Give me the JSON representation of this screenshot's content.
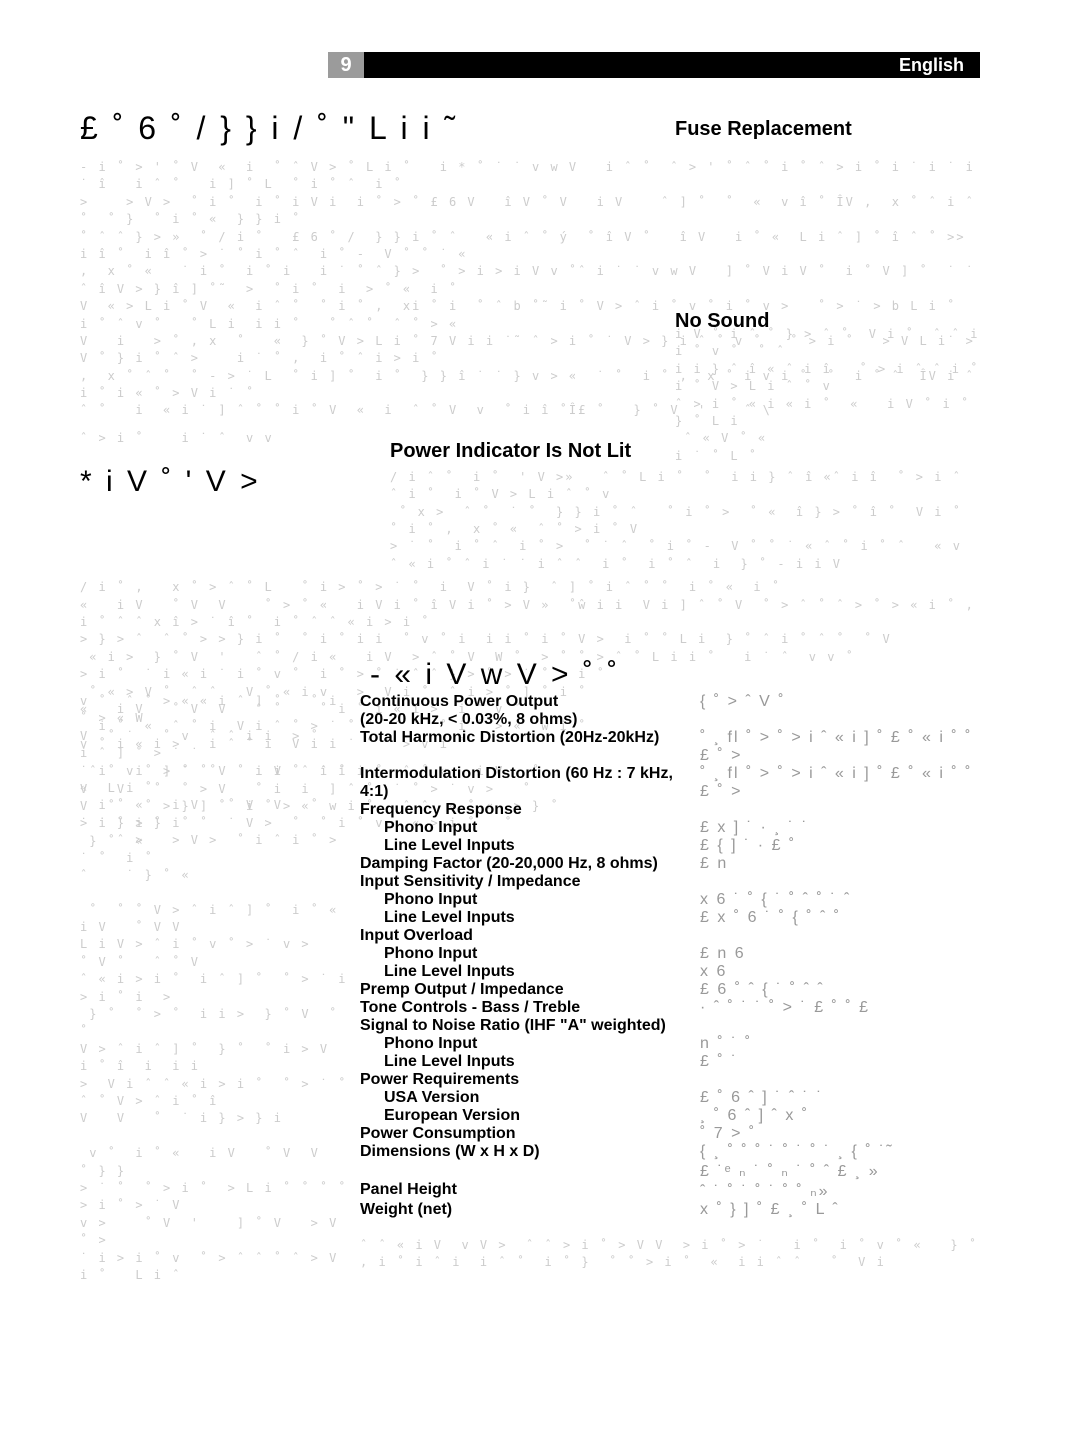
{
  "header": {
    "page_number": "9",
    "language": "English"
  },
  "titles": {
    "troubleshooting": "£  ˚ 6     ˚ /   } } i  / ˚ \"   L i i ˜",
    "fuse_replacement": "Fuse Replacement",
    "power_indicator": "Power Indicator Is Not Lit",
    "no_sound": "No Sound",
    "section2_left": "*     i V      ˚    '   V >",
    "spec_heading": "- « i V   w V >         ˚  ˚"
  },
  "body": {
    "block1": "- i ˚ > ' ˚ V  «  i  ˚ ˆ V > ˚ L i ˚   i * ˚ ˙ ˙ v w V   i ˆ ˚  ˆ > ' ˚ ˆ ˚ i ˚ ˆ > i ˚ i ˙ i ˙ i ˙ î   i ˆ ˚   i ] ˚ L  ˚ i ˚ ˆ  i ˚\n>    > V >  ˚ i ˚  i ˚ i V i  i ˚ > ˚ £ 6 V   î V ˚ V   i V    ˆ ] ˚  ˚  «  v î ˚ ÎV ,  x ˚ ˆ i ˆ ˚  ˚ }  ˚ i ˚ «  } } i ˚\n˚ ˆ ˆ } > »  ˚ / i ˚   £ 6 ˚ /  } } i ˚ ˆ   « i ˆ ˚ ý  ˚ î V ˚   î V   i ˚ «  L i ˆ ] ˚ î ˆ ˚ >> i î ˚  i î ˚ > ˙ ˚ i ˚ ˆ  i ˚ -  V ˚ ˚ ˙ «\n,  x ˚ «   ˙ i ˚  i ˚ i   i ˙ ˚ ˆ } >  ˚ > i > i V v ˚ˆ i ˙ ˙ v w V   ] ˚ V i V ˚  i ˚ V ] ˚  ˙ ˙ ˆ î V > } î ] ˚˜  >  ˚ i ˚  i  > ˚ «  i ˚\nV  « > L i ˚ V  «  i ˆ ˚  ˚ i ˚ ,  xi ˚ i  ˚ ˆ b ˚˜ i ˚ V > ˆ i ˚ v ˚ i ˚ v >   ˚ > ˙ > b L i ˚  i ˚ ˆ v ˚   ˚ L i  i i ˚   ˚ ˆ ˚  ˆ ˚ > «\nV   i   > ˚ , x  ˚   «  } ˚ V > L i ˚ 7 V i i ˙˜ ˆ > i ˚ ˙ V > } i ˆ ˚ v ˚   ˚ > i ˚   > V L i˙ > V ˚ } i ˚ ˆ >    i ˙ ˚ ,  i ˚ ˆ i > i ˚\n,  x ˚ ˆ ˚  ˚ - > ˙ L  ˚ i ] ˚  i ˚  } } î ˙ ˙ } v > «  ˙ ˚  i ˚ ,  x ˚ i v i ˚  ˚  i ˚ ˆ  ÎV i ˆ i ˚ i « ˚ > V i ˙ ˚\nˆ ˚   i  « i ˙ ] ˆ ˚ ˚ i ˚ V  «  i  ˆ ˚ V  v  ˚ i î ˚Î£ ˚   } ˚ V  '    ˆ \\",
    "trouble_tail": "ˆ > i ˚    i ˙ ˆ  v v",
    "power_block": "/ i ˆ ˚  i ˚  ' V >»   ˆ ˚ L i ˚  ˚  i i } ˆ î «ˆ i î  ˚ > i ˆ ˆ i ˚  i ˚ V > L i ˆ ˚ v\n ˚ x >  ˆ ˚  ˙ ˚  } } i ˚ ˆ   ˚ i ˚ >  ˚ «  î } > ˚ î ˚  V i ˚  ˚ i ˚ ,  x ˚ «  ˆ ˚ > i ˚ V\n> ˙ ˚  i ˚ ˆ  i ˚ >  ˚ ˙ ˆ  ˚ i ˚ -  V ˚ ˚ ˙ « ˆ ˚ i ˚ ˆ   « v ˆ « i ˚ ˆ i ˙ ˙ i ˆ ˆ  i ˚  i ˚ ˆ  i  } ˚ - i i V",
    "no_sound_block": "i V ˚ i ˆ ˚ } > ˆ ˚  V i ˚  ˆ ˆ i i ˚ v ˚  ˚ ˆ\ni i } ˆ î « ˆ i î   ˚ > i ˆ ˆ i ˚  i ˚ V > L i ˆ ˚ v\nˆ > i ˚ « i « i ˚  «   i V ˚ i ˚    } ˚ L i\n ˆ « V ˚ «\ni ˙ ˚ L ˚",
    "mid_block": "/ i ˚ ,   x ˚ > ˆ ˚ L   ˚ i > ˚ > ˙ ˚  i  V ˚ i }  ˆ ] ˚ i ˆ ˚ ˚  i ˚ «  i ˚\n«   i V   ˚ V  V    ˚ > ˚ «   i V i ˚ î V i ˚ > V »  ˚ŵ i i  V i ] ˆ ˚ V  ˚ > ˆ ˚ ˆ > ˚ > « i ˚ , i ˚ ˆ ˆ x î > ˙ î ˚  i ˚ ˆ ˆ « i > i ˚\n> } > ˆ  ˆ ˚ > > } i ˚  ˚ i ˚ i i  ˚ v ˚ i  i i ˚ i ˚ V >  i ˚ ˚ L i  } ˚ ˆ i ˚ ˆ ˚  ˚ V\n « i >  } ˚ V  '   ˆ ˚ / i «   i V  > ˆ ˚ V  W ˚  > ˚ ˚ > ˆ ˚ L i i ˚   i ˙ ˆ  v v ˚\n> i ˚  ˙ i « i ˙ i ˚ v ˚  i ˚ > ˚ ˙ ˆ ˆ } > ˚ > ˙ ˚ > i ˚\n ˚ « > V ˚  ˆ ˆ   V ˚ « i v   >  V i ˚  ˆ i > ˚ ] ˚ i ˚\n«   i V   ˚ V  V   ˆ ˚    ˚ i ˚ i « i >  i ˚ v ˚\n  i ˚  «  ˆ ˚ i  V i ˆ ˚ > ˙ ˚ ˆ  ˙ ˚  ˚ i ˚ > «  w i ˚\nv ˚ i « i >   i ˆ ˚ i  V i i ˙ ˚ ˆ > v i ˚    ˚",
    "mid_block2": " ˆ ˚  i  ] ˚  ˚  ˚ i i  ˆ ˆ i i ˚  ˆ ˚ «   i V   ˚\nV   V   ˚  ˚ > V   ˚ i  i  ] ˆ ˚  ˙ ˚ > ˙ v >   ˚\nV  ˚   ˚ > } ] ˚  i ˚ > «  w i ˚   ˆ ˆ  « ˚ «  > } ˚\n> ˙ ˚ i ˚  ˚ ˚  ˙ V >  ˚  ˚ i ˚ v   « > i ˚   ˚\n } ˚  «",
    "left_col": "v ˚  ˆ ˚ > « « i ˆ ] ˚   ˚ i ˚ > « W\nV  ˚ ˙   ˚ v  ˆ ˆ i i  > ˚   i ˆ ] ˚ > ˙ ˙\n˙ i  v ˚ > ˙ ˚ V   i V ˚  i ˚ «  L i ˚\n  i ˚ «   i V   ˚ V  V   ˚   ˙ i } > } i\n    ˆ >   > V >  ˚ i ˆ i ˚ > ˙ ˚  i ˚\nˆ    ˙ } ˚ «\n\n ˚  ˚ ˚ V > ˆ i ˆ ] ˚  i ˚ «   i V   ˚ V V\nL i V > ˆ i ˚ v ˚ > ˙ v >    ˚ V ˚   ˆ ˚ V\nˆ « i > i ˚  i ˆ ] ˚  ˚ > ˙ i  > i ˚ i  >\n } ˚  ˚ > ˚  i i >  } ˚ V  ˚   ˚\nV > ˆ i ˆ ] ˚  } ˚  ˚ i > V  i ˚ î  i  i i\n>  V i ˆ ˆ « i > i ˚  ˚ > ˙ ˚ ˆ ˚ V > ˆ i ˚ î\nV   V   ˚  ˙ i } > } i\n\n v ˚  i ˚ «   i V   ˚ V  V    ˚ } }\n> ˙ ˚  ˚ > i ˚  > L i ˚ ˚ ˚ ˚ > i ˚ > ˙ V\nv >    ˚ V  '    ] ˚ V   > V   ˚ >\n˙ i > i ˚ v  ˚ > ˆ ˆ ˚ ˆ > V i ˚   L i ˆ"
  },
  "specs": [
    {
      "label": "Continuous Power Output",
      "value": "{ ˚ >  ˆ V ˚",
      "indent": false
    },
    {
      "label": "(20-20 kHz, < 0.03%, 8 ohms)",
      "value": "",
      "indent": false
    },
    {
      "label": "Total Harmonic Distortion (20Hz-20kHz)",
      "value": "˚  ¸ fl ˚ > ˚ > i ˆ «  i ] ˚ £ ˚ «  i ˚ ˚ £ ˚ >",
      "indent": false
    },
    {
      "label": "Intermodulation Distortion (60 Hz : 7 kHz, 4:1)",
      "value": "˚  ¸ fl ˚ > ˚ > i ˆ «  i ] ˚ £ ˚ «  i ˚ ˚ £ ˚ >",
      "indent": false
    },
    {
      "label": "Frequency Response",
      "value": "",
      "indent": false
    },
    {
      "label": "Phono Input",
      "value": "£ x   ] ˙ ·  ¸ ˙ ˙",
      "indent": true
    },
    {
      "label": "Line Level Inputs",
      "value": "£   {   ] ˙ · £ ˚",
      "indent": true
    },
    {
      "label": "Damping Factor (20-20,000 Hz, 8 ohms)",
      "value": "£ n",
      "indent": false
    },
    {
      "label": "Input Sensitivity / Impedance",
      "value": "",
      "indent": false
    },
    {
      "label": "Phono Input",
      "value": " x 6 ˙  ˚ { ˙ ˚  ˆ ˚ ˙ ˆ",
      "indent": true
    },
    {
      "label": "Line Level Inputs",
      "value": "£ x ˚ 6 ˙ ˚ { ˚  ˆ  ˚",
      "indent": true
    },
    {
      "label": "Input Overload",
      "value": "",
      "indent": false
    },
    {
      "label": "Phono Input",
      "value": "£ n   6",
      "indent": true
    },
    {
      "label": "Line Level Inputs",
      "value": "x 6",
      "indent": true
    },
    {
      "label": "Premp Output / Impedance",
      "value": "£ 6 ˚ ˆ { ˙ ˚ ˆ  ˆ",
      "indent": false
    },
    {
      "label": "Tone Controls - Bass / Treble",
      "value": "· ˆ ˚ ˙ ˙ ˚ > ˙ £   ˚   ˚ £",
      "indent": false
    },
    {
      "label": "Signal to Noise Ratio (IHF \"A\" weighted)",
      "value": "",
      "indent": false
    },
    {
      "label": "Phono Input",
      "value": "n ˚ ˙ ˚",
      "indent": true
    },
    {
      "label": "Line Level Inputs",
      "value": "£  ˚ ˙",
      "indent": true
    },
    {
      "label": "Power Requirements",
      "value": "",
      "indent": false
    },
    {
      "label": "USA Version",
      "value": "£  ˚ 6   ˆ ] ˙ ˆ ˙ ˙",
      "indent": true
    },
    {
      "label": "European Version",
      "value": "¸  ˚ 6   ˆ ] ˆ x ˚",
      "indent": true
    },
    {
      "label": "Power Consumption",
      "value": "   ˚ 7 >  ˚",
      "indent": false
    },
    {
      "label": "Dimensions (W x H x D)",
      "value": "{ ¸ ˚ ˚ ˚ ˙ ˚ ˙ ˚ ˙ ¸  { ˚ ˙˜",
      "indent": false
    },
    {
      "label": "",
      "value": "£ ˙ᵉ  ₙ ˙ ˚ ₙ ˙ ˚ ˆ £ ¸ »",
      "indent": false
    },
    {
      "label": "Panel Height",
      "value": "ˆ ˙ ˚ ˙ ˚ ˙ ˚ ˚ ₙ»",
      "indent": false
    },
    {
      "label": "Weight (net)",
      "value": "x ˚  } ] ˚ £ ¸ ˚ L ˆ",
      "indent": false
    }
  ],
  "spec_note": "ˆ ˆ « i V  v V >  ˆ ˆ > i ˚ > V V  > i ˚ > ˙   i ˚  i ˚ v ˚ «   } ˚\n, i ˚ i ˆ i  i ˆ ˚  i ˚ }  ˚ ˚ > i ˚  «  i i ˆ ˆ   ˚  V i"
}
